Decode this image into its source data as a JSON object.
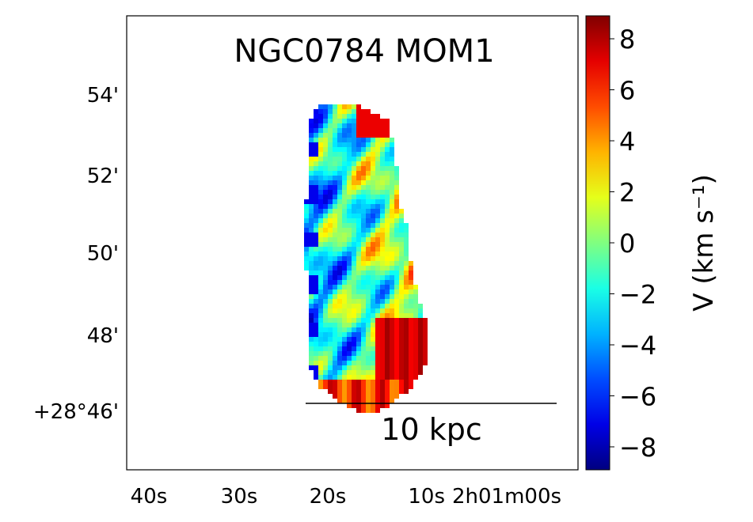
{
  "chart_data": {
    "type": "heatmap",
    "title": "NGC0784  MOM1",
    "xlabel": "",
    "ylabel": "",
    "x_tick_labels": [
      "40s",
      "30s",
      "20s",
      "10s",
      "2h01m00s"
    ],
    "y_tick_labels": [
      "54'",
      "52'",
      "50'",
      "48'",
      "+28°46'"
    ],
    "colorbar": {
      "label": "V (km s⁻¹)",
      "colormap": "jet",
      "range": [
        -8.9,
        8.9
      ],
      "ticks": [
        8,
        6,
        4,
        2,
        0,
        -2,
        -4,
        -6,
        -8
      ],
      "tick_labels": [
        "8",
        "6",
        "4",
        "2",
        "0",
        "−2",
        "−4",
        "−6",
        "−8"
      ]
    },
    "scale_bar": {
      "label": "10 kpc"
    },
    "description_values": {
      "min_velocity": -8.9,
      "max_velocity": 8.9
    }
  }
}
